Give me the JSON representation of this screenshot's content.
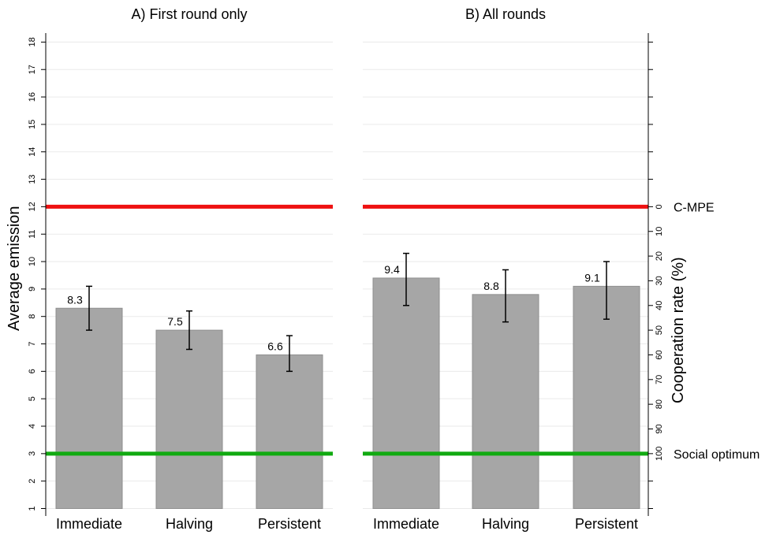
{
  "chart_data": {
    "type": "bar",
    "ylabel_left": "Average emission",
    "ylabel_right": "Cooperation rate (%)",
    "ylim": [
      1,
      18.5
    ],
    "y_ticks": [
      1,
      2,
      3,
      4,
      5,
      6,
      7,
      8,
      9,
      10,
      11,
      12,
      13,
      14,
      15,
      16,
      17,
      18
    ],
    "right_axis_ticks": [
      0,
      10,
      20,
      30,
      40,
      50,
      60,
      70,
      80,
      90,
      100
    ],
    "grid": true,
    "reference_lines": [
      {
        "label": "C-MPE",
        "value": 12,
        "color": "#ee1111"
      },
      {
        "label": "Social optimum",
        "value": 3,
        "color": "#11aa11"
      }
    ],
    "bar_color": "#a6a6a6",
    "panels": [
      {
        "title": "A) First round only",
        "categories": [
          "Immediate",
          "Halving",
          "Persistent"
        ],
        "values": [
          8.3,
          7.5,
          6.6
        ],
        "value_labels": [
          "8.3",
          "7.5",
          "6.6"
        ],
        "error_low": [
          7.5,
          6.8,
          6.0
        ],
        "error_high": [
          9.1,
          8.2,
          7.3
        ]
      },
      {
        "title": "B) All rounds",
        "categories": [
          "Immediate",
          "Halving",
          "Persistent"
        ],
        "values": [
          9.4,
          8.8,
          9.1
        ],
        "value_labels": [
          "9.4",
          "8.8",
          "9.1"
        ],
        "error_low": [
          8.4,
          7.8,
          7.9
        ],
        "error_high": [
          10.3,
          9.7,
          10.0
        ]
      }
    ]
  }
}
